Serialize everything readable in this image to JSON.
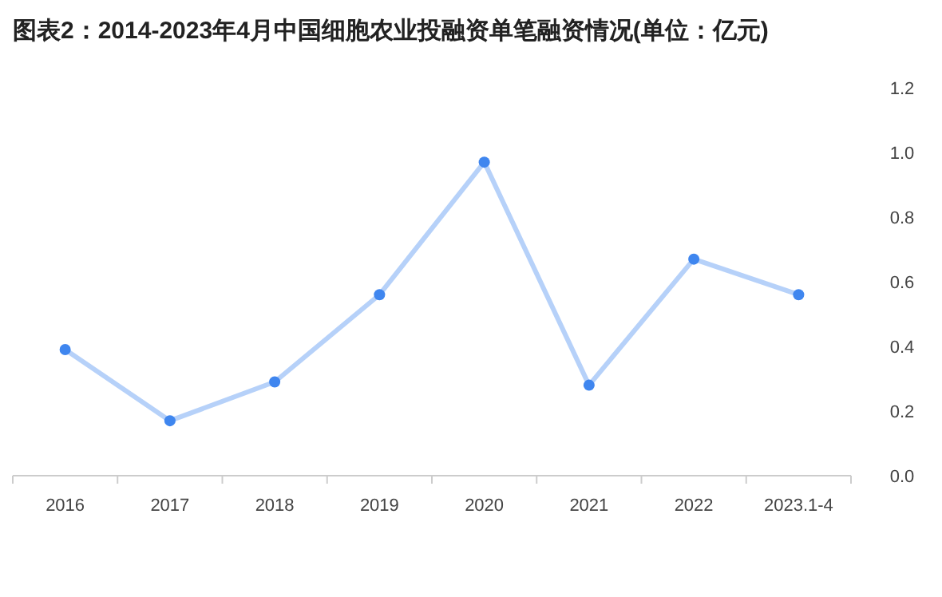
{
  "chart_data": {
    "type": "line",
    "title": "图表2：2014-2023年4月中国细胞农业投融资单笔融资情况(单位：亿元)",
    "categories": [
      "2016",
      "2017",
      "2018",
      "2019",
      "2020",
      "2021",
      "2022",
      "2023.1-4"
    ],
    "series": [
      {
        "color": "#3f86ef",
        "values": [
          0.39,
          0.17,
          0.29,
          0.56,
          0.97,
          0.28,
          0.67,
          0.56
        ]
      }
    ],
    "ylim": [
      0,
      1.2
    ],
    "yticks": [
      {
        "value": 0,
        "label": "0.0"
      },
      0.2,
      0.4,
      0.6,
      0.8,
      {
        "value": 1,
        "label": "1.0"
      },
      1.2
    ],
    "marker": "circle",
    "line_style": "solid",
    "grid": false
  }
}
